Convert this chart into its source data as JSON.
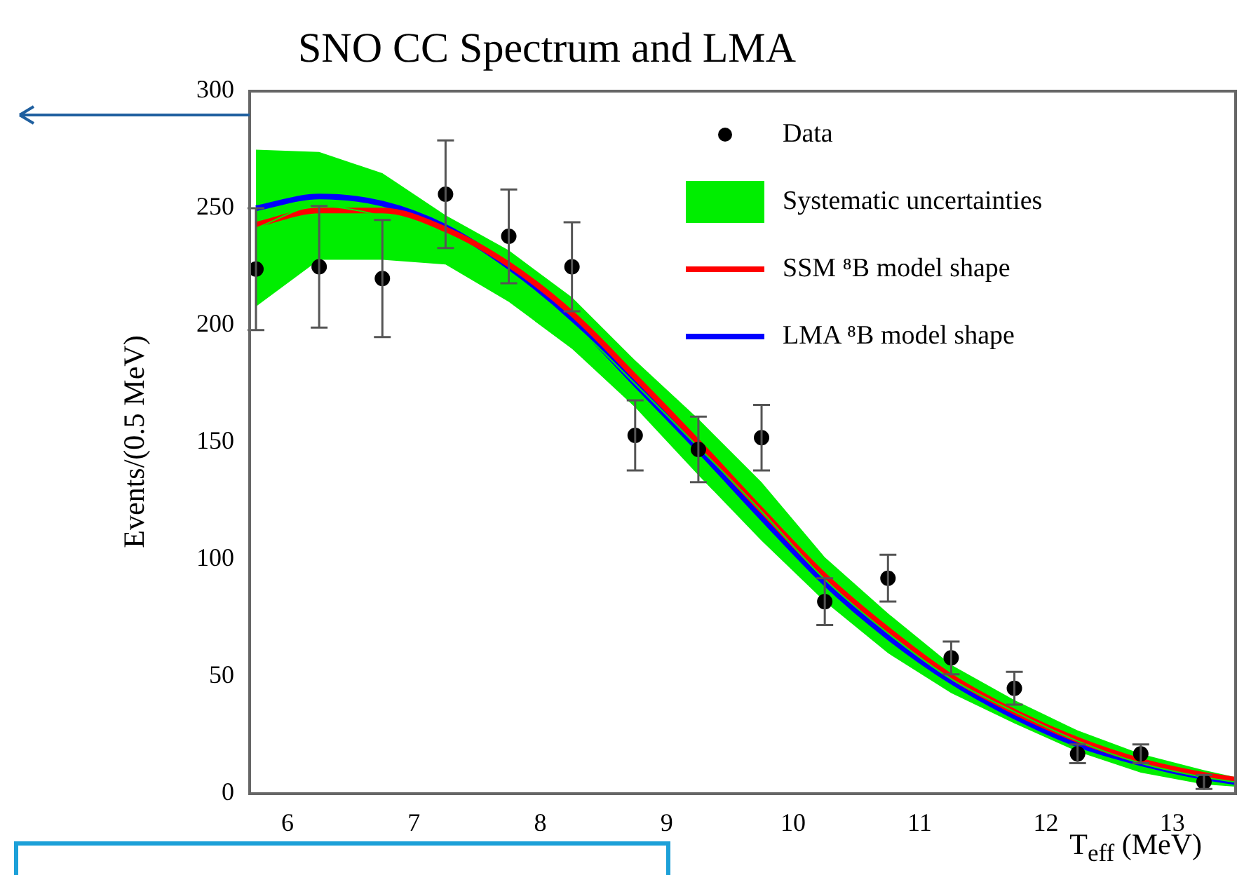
{
  "chart_data": {
    "type": "scatter",
    "title": "SNO CC Spectrum and LMA",
    "xlabel": "T$_{eff}$ (MeV)",
    "ylabel": "Events/(0.5 MeV)",
    "xlim": [
      5.7,
      13.5
    ],
    "xticks": [
      6,
      7,
      8,
      9,
      10,
      11,
      12,
      13
    ],
    "ylim": [
      0,
      300
    ],
    "yticks": [
      0,
      50,
      100,
      150,
      200,
      250,
      300
    ],
    "grid": false,
    "legend": "top right",
    "series": [
      {
        "name": "Data",
        "marker": "circle",
        "color": "#000000",
        "x": [
          5.75,
          6.25,
          6.75,
          7.25,
          7.75,
          8.25,
          8.75,
          9.25,
          9.75,
          10.25,
          10.75,
          11.25,
          11.75,
          12.25,
          12.75,
          13.25
        ],
        "values": [
          224,
          225,
          220,
          256,
          238,
          225,
          153,
          147,
          152,
          82,
          92,
          58,
          45,
          17,
          17,
          5
        ],
        "errors": [
          26,
          26,
          25,
          23,
          20,
          19,
          15,
          14,
          14,
          10,
          10,
          7,
          7,
          4,
          4,
          3
        ]
      },
      {
        "name": "Systematic uncertainties",
        "type": "line",
        "color": "#00ee00",
        "x": [
          5.75,
          6.25,
          6.75,
          7.25,
          7.75,
          8.25,
          8.75,
          9.25,
          9.75,
          10.25,
          10.75,
          11.25,
          11.75,
          12.25,
          12.75,
          13.25,
          13.5
        ],
        "values": [
          241.5,
          251,
          246.5,
          236.5,
          221,
          201,
          175,
          148,
          120.5,
          91.5,
          68.5,
          49,
          35,
          22.5,
          13,
          7,
          5
        ],
        "lower": [
          208,
          228,
          228,
          226,
          210,
          190,
          165,
          136,
          108,
          82,
          60,
          43,
          30,
          18,
          9,
          4,
          3
        ],
        "upper": [
          275,
          274,
          265,
          247,
          232,
          212,
          185,
          160,
          133,
          101,
          77,
          55,
          40,
          27,
          17,
          10,
          7
        ]
      },
      {
        "name": "SSM ⁸B model shape",
        "type": "line",
        "color": "#ff0000",
        "x": [
          5.75,
          6.25,
          6.75,
          7.25,
          7.75,
          8.25,
          8.75,
          9.25,
          9.75,
          10.25,
          10.75,
          11.25,
          11.75,
          12.25,
          12.75,
          13.25,
          13.5
        ],
        "values": [
          243,
          249,
          249,
          241,
          226,
          205,
          178,
          150,
          121,
          93,
          70,
          50,
          35,
          23,
          14,
          8,
          6
        ]
      },
      {
        "name": "LMA ⁸B model shape",
        "type": "line",
        "color": "#0000ff",
        "x": [
          5.75,
          6.25,
          6.75,
          7.25,
          7.75,
          8.25,
          8.75,
          9.25,
          9.75,
          10.25,
          10.75,
          11.25,
          11.75,
          12.25,
          12.75,
          13.25,
          13.5
        ],
        "values": [
          250,
          255,
          252,
          242,
          225,
          203,
          175,
          147,
          118,
          90,
          67,
          48,
          33,
          21,
          13,
          7,
          5
        ]
      }
    ]
  }
}
